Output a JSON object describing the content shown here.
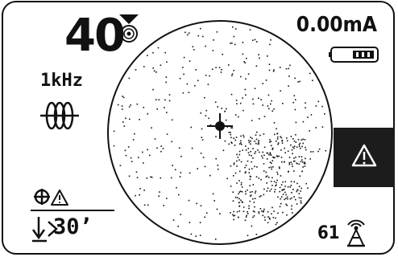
{
  "display": {
    "signal_strength": "40",
    "current": "0.00mA",
    "frequency": "1kHz",
    "depth": "30’",
    "gain": "61"
  },
  "icons": {
    "target": "target-marker-icon",
    "battery": "battery-icon",
    "coil": "coil-antenna-icon",
    "alert": "warning-triangle-icon",
    "mode": "locate-mode-warning-icon",
    "depth": "depth-arrow-icon",
    "gain": "gain-antenna-icon",
    "crosshair": "crosshair-icon"
  },
  "colors": {
    "foreground": "#111111",
    "background": "#ffffff",
    "alert_background": "#1c1c1c"
  }
}
